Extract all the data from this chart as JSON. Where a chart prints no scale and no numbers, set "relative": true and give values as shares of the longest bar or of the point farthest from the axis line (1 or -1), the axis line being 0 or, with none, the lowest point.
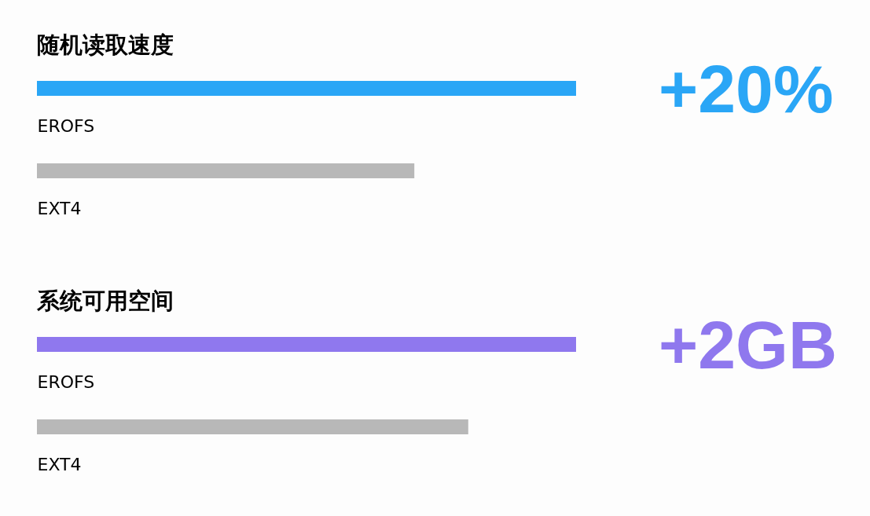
{
  "chart_data": [
    {
      "type": "bar",
      "orientation": "horizontal",
      "relative": true,
      "title": "随机读取速度",
      "categories": [
        "EROFS",
        "EXT4"
      ],
      "values": [
        1,
        0.7
      ],
      "colors": [
        "#2aa6f6",
        "#b8b8b8"
      ],
      "annotations": [
        "+20%"
      ]
    },
    {
      "type": "bar",
      "orientation": "horizontal",
      "relative": true,
      "title": "系统可用空间",
      "categories": [
        "EROFS",
        "EXT4"
      ],
      "values": [
        1,
        0.8
      ],
      "colors": [
        "#8f78ee",
        "#b8b8b8"
      ],
      "annotations": [
        "+2GB"
      ]
    }
  ]
}
